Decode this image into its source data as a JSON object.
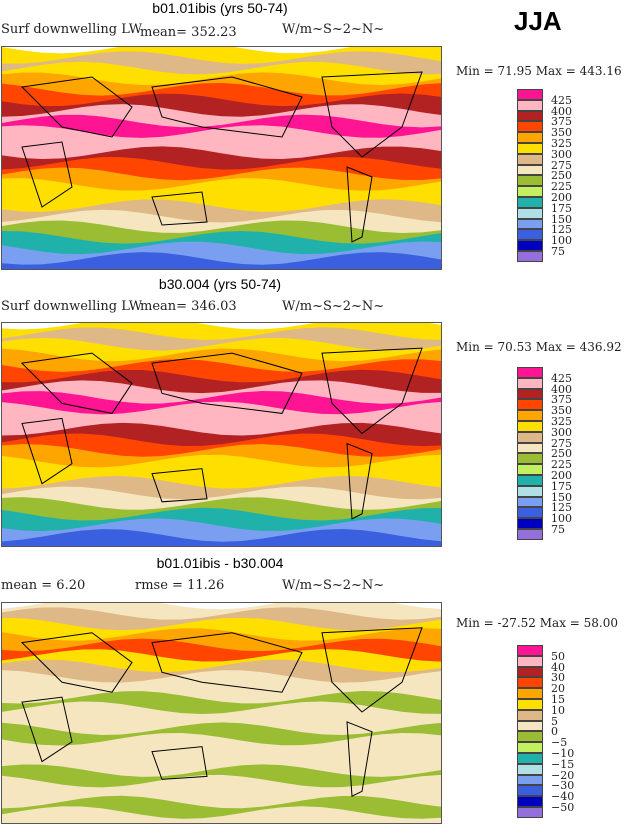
{
  "season": "JJA",
  "colors": [
    "#ff1493",
    "#ffb6c1",
    "#b22222",
    "#ff4500",
    "#ffa500",
    "#ffdf00",
    "#deb887",
    "#f5e6c0",
    "#9abd33",
    "#c2f060",
    "#20b2aa",
    "#b0e0e6",
    "#7b9ff0",
    "#3a60e0",
    "#0000c0",
    "#9370db"
  ],
  "panels": [
    {
      "title": "b01.01ibis (yrs 50-74)",
      "left": "Surf downwelling LW",
      "mid": "mean= 352.23",
      "units": "W/m~S~2~N~",
      "minmax": "Min =  71.95 Max = 443.16",
      "levels": [
        "425",
        "400",
        "375",
        "350",
        "325",
        "300",
        "275",
        "250",
        "225",
        "200",
        "175",
        "150",
        "125",
        "100",
        "75"
      ]
    },
    {
      "title": "b30.004 (yrs 50-74)",
      "left": "Surf downwelling LW",
      "mid": "mean= 346.03",
      "units": "W/m~S~2~N~",
      "minmax": "Min =  70.53 Max = 436.92",
      "levels": [
        "425",
        "400",
        "375",
        "350",
        "325",
        "300",
        "275",
        "250",
        "225",
        "200",
        "175",
        "150",
        "125",
        "100",
        "75"
      ]
    },
    {
      "title": "b01.01ibis - b30.004",
      "left": "mean =   6.20",
      "mid": "rmse =  11.26",
      "units": "W/m~S~2~N~",
      "minmax": "Min = -27.52 Max =  58.00",
      "levels": [
        "50",
        "40",
        "30",
        "20",
        "15",
        "10",
        "5",
        "0",
        "−5",
        "−10",
        "−15",
        "−20",
        "−30",
        "−40",
        "−50"
      ]
    }
  ]
}
